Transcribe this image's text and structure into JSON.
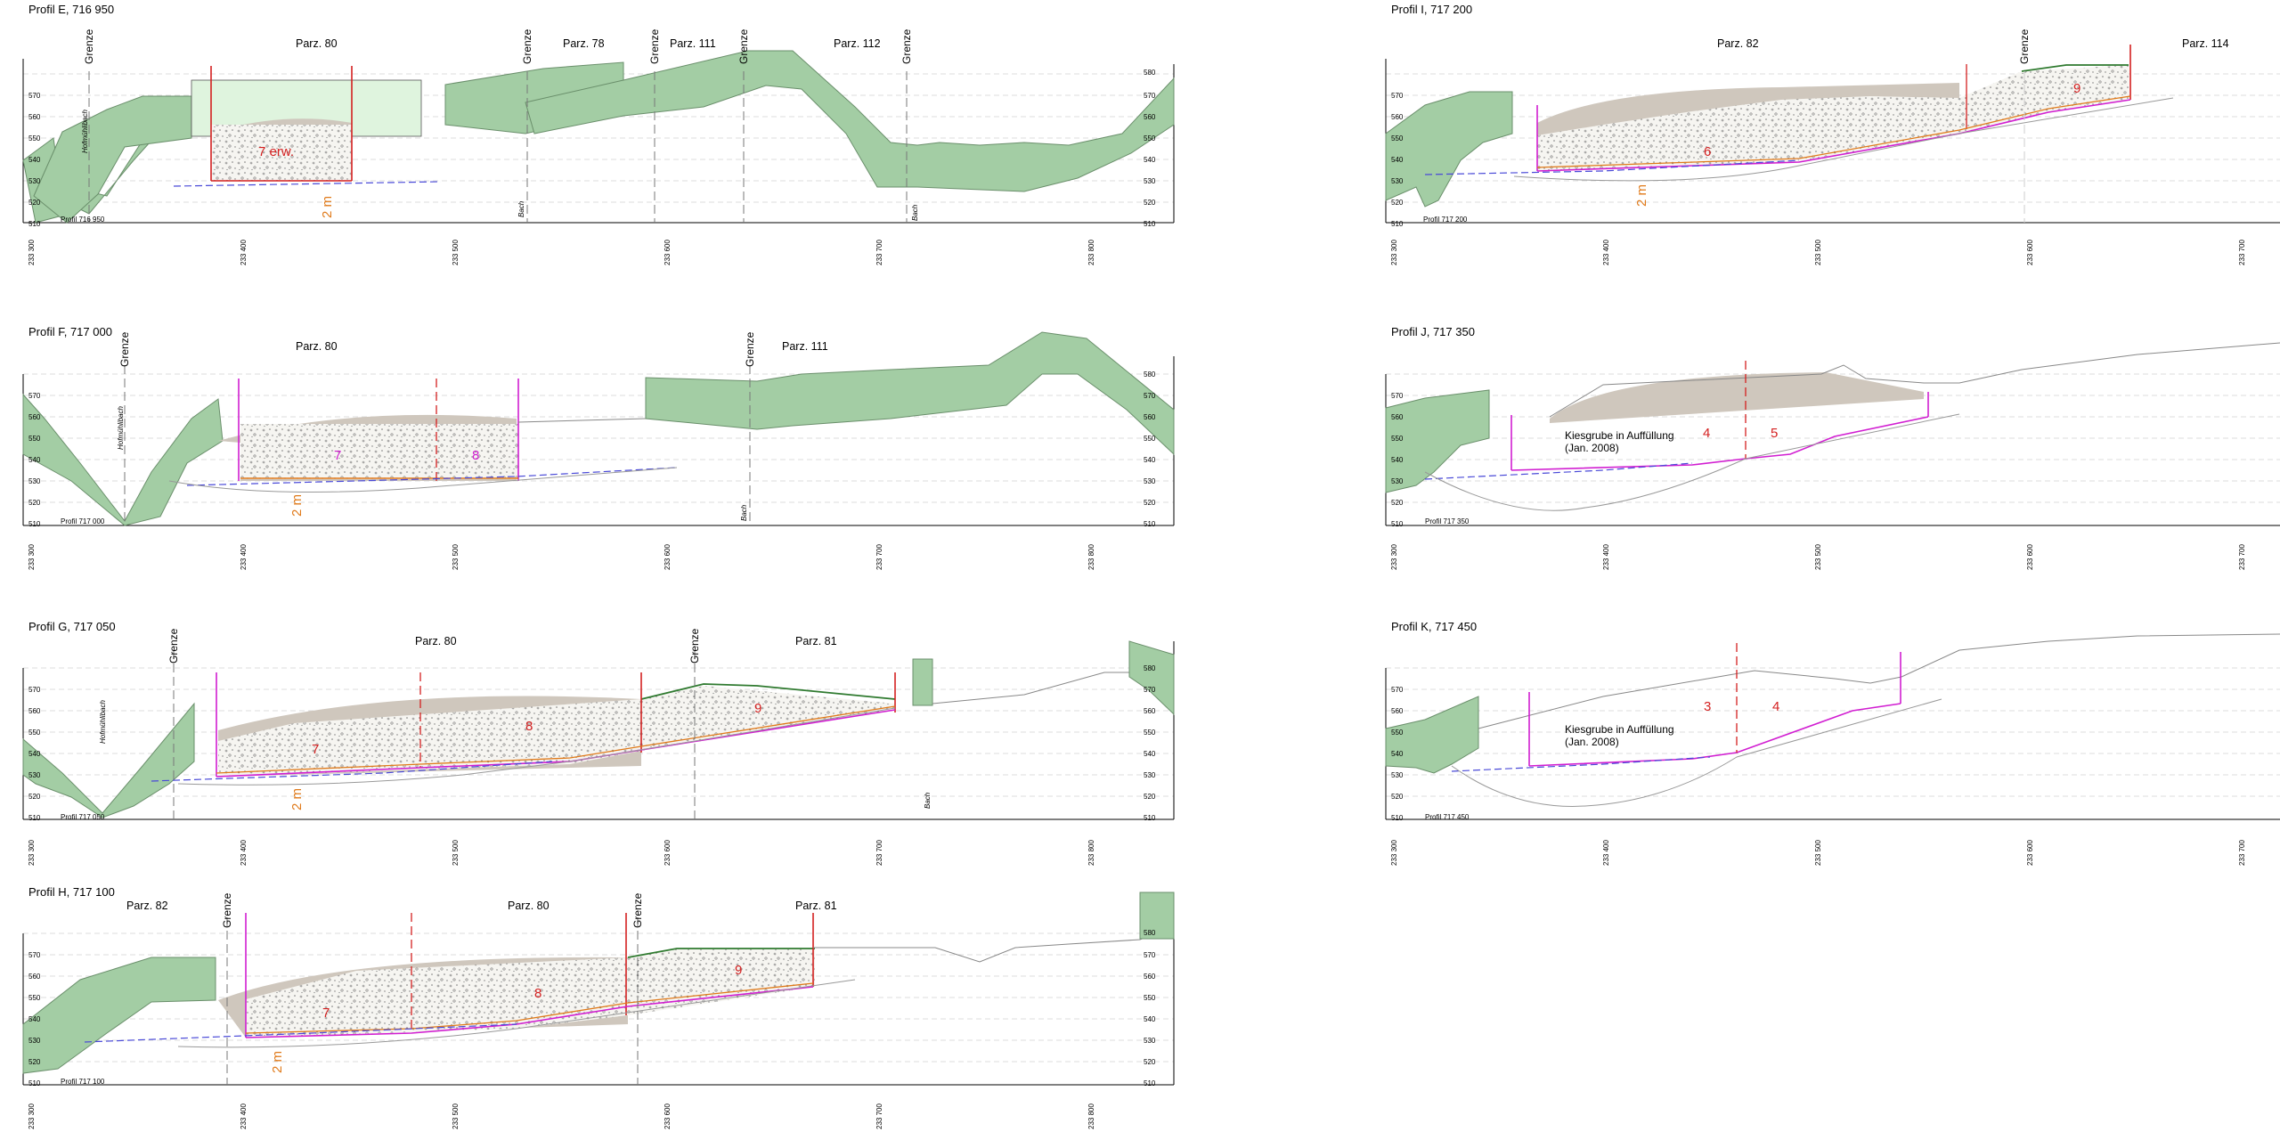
{
  "sheet": {
    "subject": "Geological cross-section profiles (Kiesgrube)",
    "label_grenze": "Grenze",
    "label_bach": "Bach",
    "label_hofmuehlibach": "Hofmühlibach",
    "label_2m": "2 m",
    "label_7erw": "7 erw.",
    "label_kies_1": "Kiesgrube in Auffüllung",
    "label_kies_2": "(Jan. 2008)",
    "x_ticks": [
      "233 300",
      "233 400",
      "233 500",
      "233 600",
      "233 700",
      "233 800"
    ],
    "y_ticks": [
      "510",
      "520",
      "530",
      "540",
      "550",
      "560",
      "570",
      "580"
    ]
  },
  "colors": {
    "vegetation_fill": "#a3cda4",
    "vegetation_stroke": "#6a8f6b",
    "light_fill": "#dff4de",
    "spoil": "#cfc7bd",
    "gravel": "#f5f4f0",
    "red": "#d42020",
    "magenta": "#d11ed1",
    "orange": "#e07a1a",
    "blue_dash": "#4a4ad8",
    "gray_line": "#888888",
    "dark_green": "#2f7a2f"
  },
  "profiles": {
    "E": {
      "title": "Profil E, 716 950",
      "footer": "Profil 716 950",
      "parcels": [
        "Parz. 80",
        "Parz. 78",
        "Parz. 111",
        "Parz. 112"
      ]
    },
    "F": {
      "title": "Profil F, 717 000",
      "footer": "Profil 717 000",
      "parcels": [
        "Parz. 80",
        "Parz. 111"
      ],
      "fields": [
        "7",
        "8"
      ]
    },
    "G": {
      "title": "Profil G, 717 050",
      "footer": "Profil 717 050",
      "parcels": [
        "Parz. 80",
        "Parz. 81"
      ],
      "fields": [
        "7",
        "8",
        "9"
      ]
    },
    "H": {
      "title": "Profil H, 717 100",
      "footer": "Profil 717 100",
      "parcels": [
        "Parz. 82",
        "Parz. 80",
        "Parz. 81"
      ],
      "fields": [
        "7",
        "8",
        "9"
      ]
    },
    "I": {
      "title": "Profil I, 717 200",
      "footer": "Profil 717 200",
      "parcels": [
        "Parz. 82",
        "Parz. 114"
      ],
      "fields": [
        "6",
        "9"
      ]
    },
    "J": {
      "title": "Profil J, 717 350",
      "footer": "Profil 717 350",
      "fields": [
        "4",
        "5"
      ]
    },
    "K": {
      "title": "Profil K, 717 450",
      "footer": "Profil 717 450",
      "fields": [
        "3",
        "4"
      ]
    }
  }
}
